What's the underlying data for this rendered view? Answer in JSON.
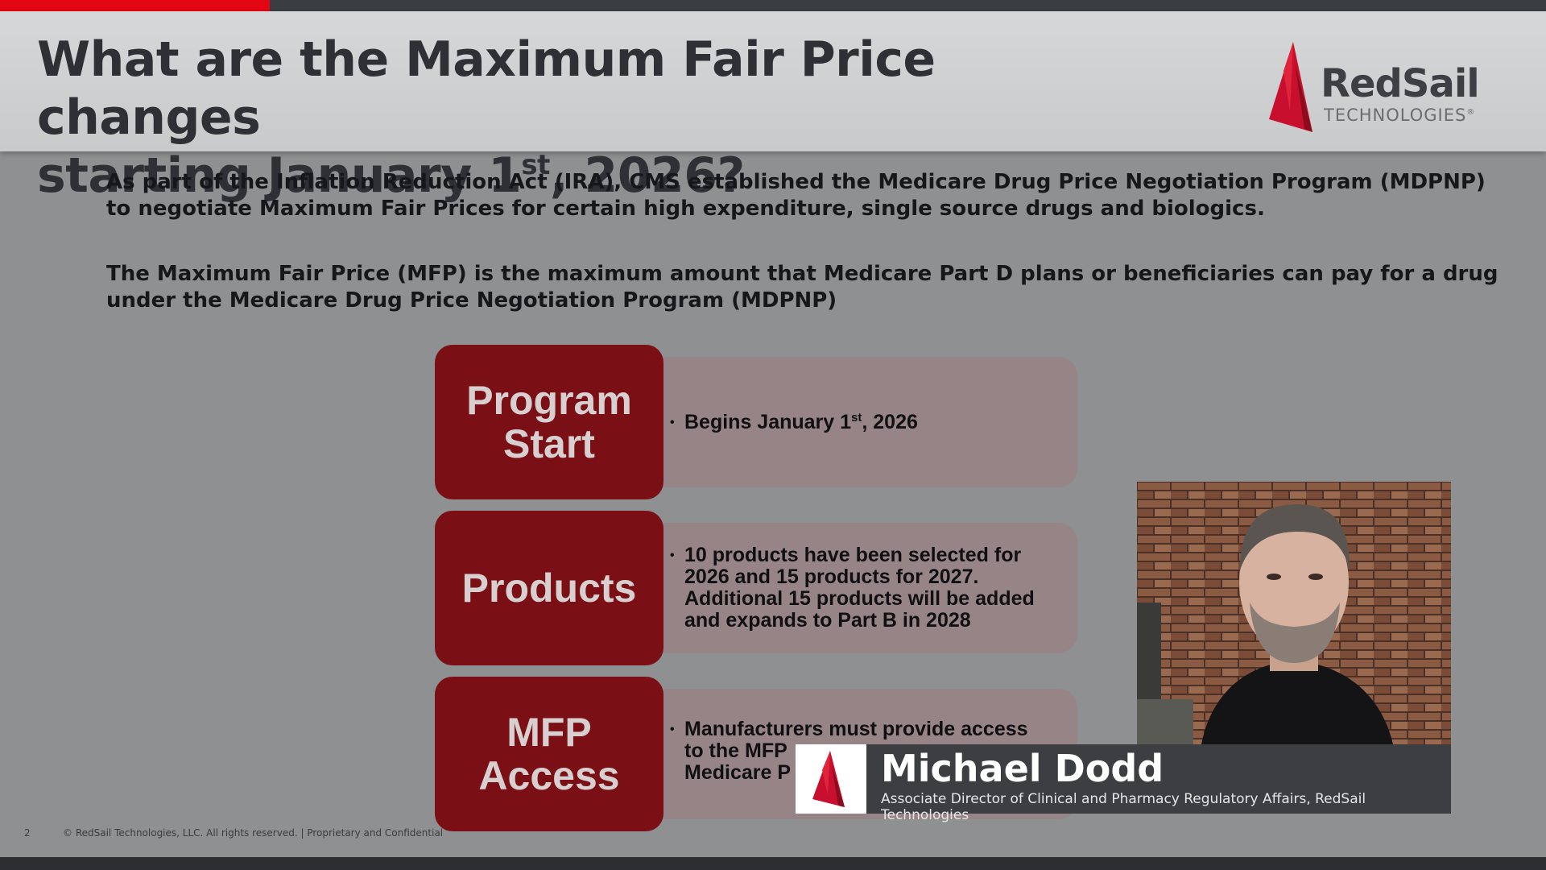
{
  "header": {
    "title_line1": "What are the Maximum Fair Price changes",
    "title_line2_pre": "starting January 1",
    "title_line2_sup": "st",
    "title_line2_post": ", 2026?"
  },
  "logo": {
    "brand": "RedSail",
    "sub": "TECHNOLOGIES",
    "mark": "®"
  },
  "body": {
    "paragraph1": "As part of the Inflation Reduction Act (IRA), CMS established the Medicare Drug Price Negotiation Program (MDPNP) to negotiate Maximum Fair Prices for certain high expenditure, single source drugs and biologics.",
    "paragraph2": "The Maximum Fair Price (MFP) is the maximum amount that Medicare Part D plans or beneficiaries can pay for a drug under the Medicare Drug Price Negotiation Program (MDPNP)"
  },
  "rows": [
    {
      "label_line1": "Program",
      "label_line2": "Start",
      "bullet_pre": "Begins January 1",
      "bullet_sup": "st",
      "bullet_post": ", 2026"
    },
    {
      "label_line1": "Products",
      "bullet": "10 products have been selected for 2026 and 15 products for 2027. Additional 15 products will be added and expands to Part B in 2028"
    },
    {
      "label_line1": "MFP",
      "label_line2": "Access",
      "bullet_line1": "Manufacturers must provide access",
      "bullet_line2": "to the MFP",
      "bullet_line3": "Medicare P"
    }
  ],
  "presenter": {
    "name": "Michael Dodd",
    "role": "Associate Director of Clinical and Pharmacy Regulatory Affairs, RedSail Technologies"
  },
  "footer": {
    "page_number": "2",
    "copyright": "© RedSail Technologies, LLC. All rights reserved.   |   Proprietary and Confidential"
  },
  "colors": {
    "accent_red": "#e30613",
    "box_red": "#7a1015",
    "box_mauve": "#978486",
    "slide_bg": "#8f9091"
  }
}
